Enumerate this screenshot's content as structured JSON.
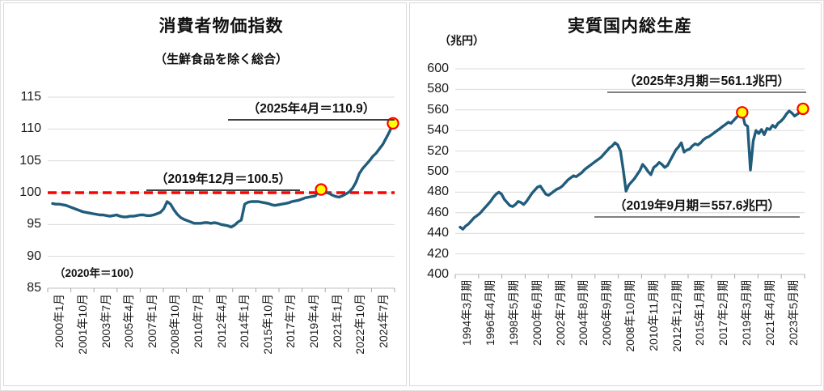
{
  "colors": {
    "line": "#205c7c",
    "marker_fill": "#ffff00",
    "marker_stroke": "#ff0000",
    "reference_line": "#ff0000",
    "gridline": "#d9d9d9",
    "axis_line": "#bfbfbf",
    "tick_mark": "#a6a6a6",
    "panel_border": "#d9d9d9"
  },
  "chart_data": [
    {
      "type": "line",
      "title": "消費者物価指数",
      "subtitle": "（生鮮食品を除く総合）",
      "axis_note": "（2020年＝100）",
      "ylim": [
        85,
        115
      ],
      "yticks": [
        85,
        90,
        95,
        100,
        105,
        110,
        115
      ],
      "x_start_label": "2000年1月",
      "x_count": 304,
      "x_step": 3,
      "x_tick_labels": [
        "2000年1月",
        "2001年10月",
        "2003年7月",
        "2005年4月",
        "2007年1月",
        "2008年10月",
        "2010年7月",
        "2012年4月",
        "2014年1月",
        "2015年10月",
        "2017年7月",
        "2019年4月",
        "2021年1月",
        "2022年10月",
        "2024年7月"
      ],
      "reference_line": {
        "y": 100,
        "style": "dashed"
      },
      "annotations": [
        {
          "text": "（2025年4月＝110.9）"
        },
        {
          "text": "（2019年12月＝100.5）"
        }
      ],
      "markers": [
        {
          "xi": 239,
          "value": 100.5,
          "label": "2019年12月"
        },
        {
          "xi": 303,
          "value": 110.9,
          "label": "2025年4月"
        }
      ],
      "values": [
        98.3,
        98.2,
        98.2,
        98.1,
        98.0,
        97.8,
        97.6,
        97.4,
        97.2,
        97.0,
        96.9,
        96.8,
        96.7,
        96.6,
        96.5,
        96.5,
        96.4,
        96.3,
        96.4,
        96.5,
        96.3,
        96.2,
        96.2,
        96.3,
        96.3,
        96.4,
        96.5,
        96.5,
        96.4,
        96.4,
        96.5,
        96.7,
        96.9,
        97.5,
        98.6,
        98.2,
        97.3,
        96.6,
        96.1,
        95.8,
        95.6,
        95.4,
        95.2,
        95.2,
        95.2,
        95.3,
        95.3,
        95.2,
        95.3,
        95.2,
        95.0,
        94.9,
        94.8,
        94.6,
        94.9,
        95.4,
        95.7,
        98.2,
        98.5,
        98.6,
        98.6,
        98.6,
        98.5,
        98.4,
        98.3,
        98.1,
        98.0,
        98.1,
        98.2,
        98.3,
        98.4,
        98.6,
        98.7,
        98.8,
        99.0,
        99.2,
        99.3,
        99.4,
        99.5,
        100.4,
        100.4,
        100.1,
        99.9,
        99.6,
        99.4,
        99.3,
        99.5,
        99.8,
        100.1,
        100.7,
        101.6,
        103.0,
        103.8,
        104.4,
        105.0,
        105.7,
        106.2,
        106.9,
        107.6,
        108.6,
        109.6,
        110.9
      ]
    },
    {
      "type": "line",
      "title": "実質国内総生産",
      "unit_label": "（兆円）",
      "ylim": [
        400,
        600
      ],
      "yticks": [
        400,
        420,
        440,
        460,
        480,
        500,
        520,
        540,
        560,
        580,
        600
      ],
      "x_start_label": "1994年3月期",
      "x_count": 125,
      "x_step": 1,
      "x_tick_labels": [
        "1994年3月期",
        "1996年4月期",
        "1998年5月期",
        "2000年6月期",
        "2002年7月期",
        "2004年8月期",
        "2006年9月期",
        "2008年10月期",
        "2010年11月期",
        "2012年12月期",
        "2015年1月期",
        "2017年2月期",
        "2019年3月期",
        "2021年4月期",
        "2023年5月期"
      ],
      "annotations": [
        {
          "text": "（2025年3月期＝561.1兆円）"
        },
        {
          "text": "（2019年9月期＝557.6兆円）"
        }
      ],
      "markers": [
        {
          "xi": 102,
          "value": 557.6,
          "label": "2019年9月期"
        },
        {
          "xi": 124,
          "value": 561.1,
          "label": "2025年3月期"
        }
      ],
      "values": [
        446,
        444,
        447,
        449,
        452,
        455,
        457,
        459,
        462,
        465,
        468,
        471,
        475,
        478,
        480,
        478,
        473,
        470,
        467,
        466,
        468,
        471,
        470,
        468,
        471,
        475,
        479,
        482,
        485,
        486,
        482,
        478,
        477,
        479,
        481,
        483,
        484,
        486,
        489,
        492,
        494,
        496,
        495,
        497,
        499,
        502,
        504,
        506,
        508,
        510,
        512,
        514,
        517,
        520,
        523,
        525,
        528,
        526,
        520,
        502,
        481,
        487,
        490,
        493,
        497,
        501,
        507,
        504,
        500,
        497,
        504,
        506,
        509,
        507,
        504,
        506,
        511,
        516,
        521,
        524,
        528,
        519,
        521,
        522,
        525,
        527,
        526,
        528,
        531,
        533,
        534,
        536,
        538,
        540,
        542,
        544,
        546,
        548,
        547,
        550,
        553,
        555,
        557.6,
        546,
        544,
        501.6,
        530,
        540,
        537,
        541,
        536,
        542,
        541,
        545,
        543,
        547,
        549,
        552,
        556,
        559,
        557,
        554,
        556,
        558,
        561.1
      ]
    }
  ]
}
